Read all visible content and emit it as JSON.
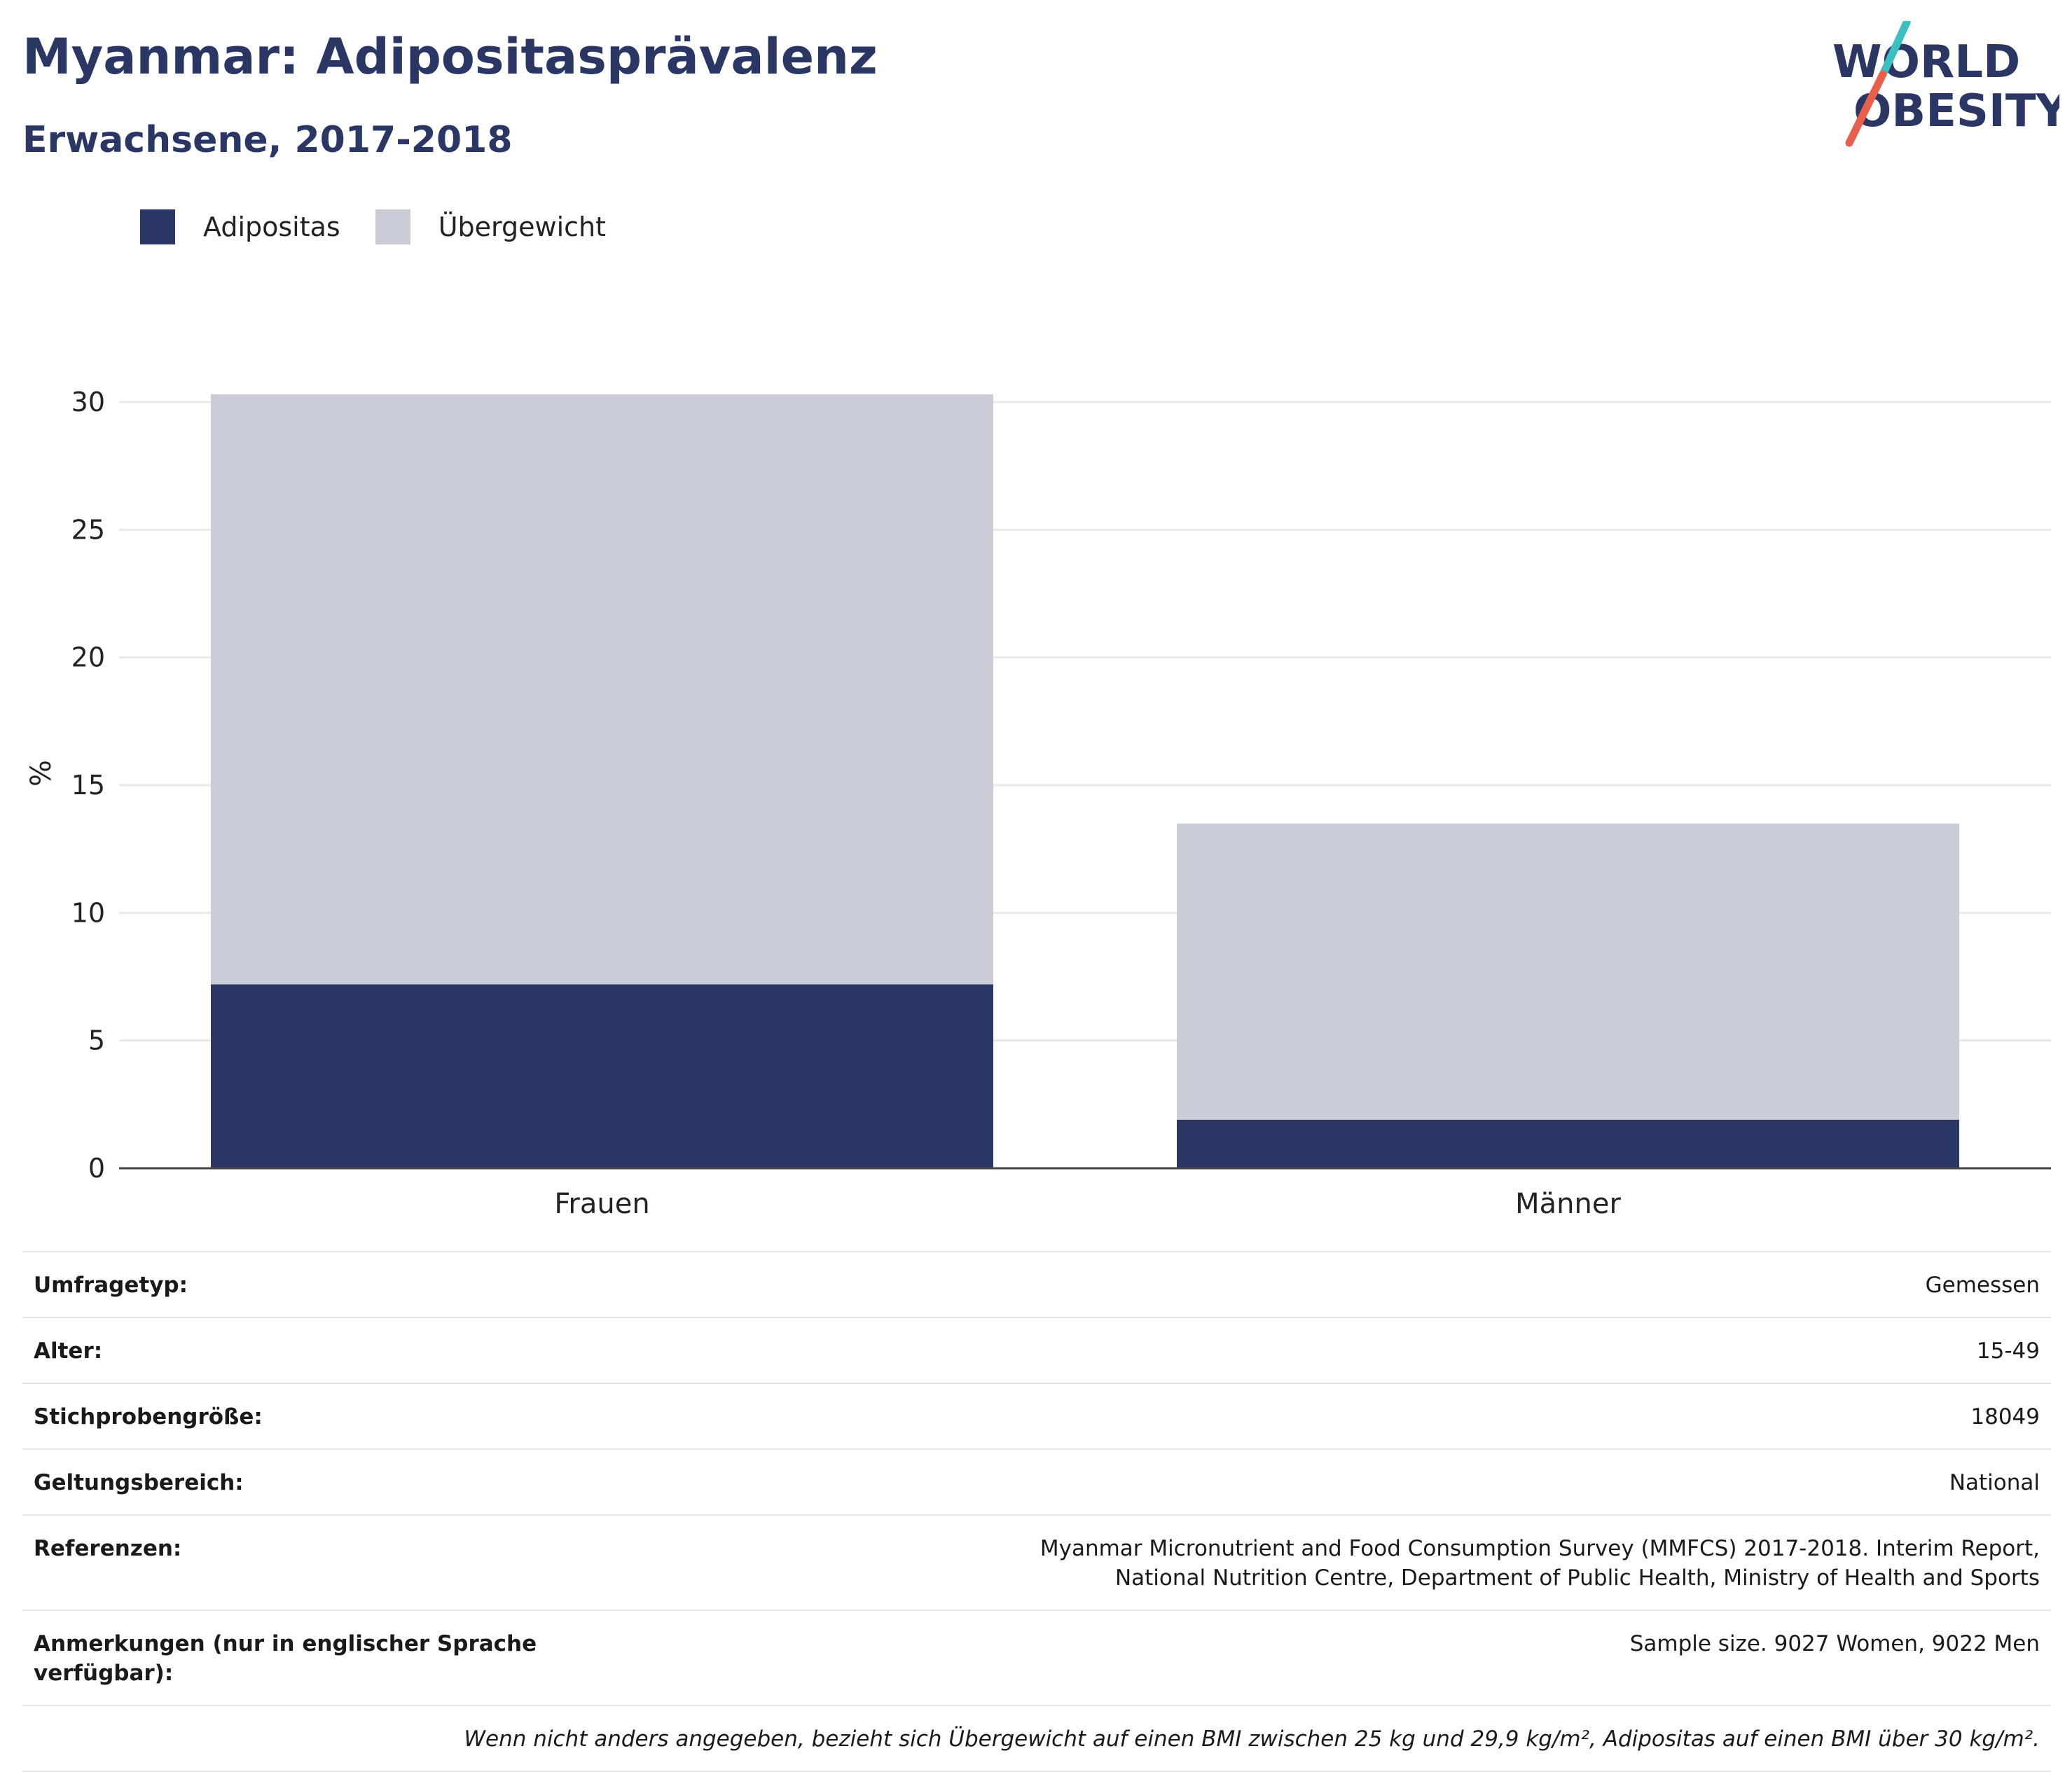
{
  "header": {
    "title": "Myanmar: Adipositasprävalenz",
    "subtitle": "Erwachsene, 2017-2018"
  },
  "logo": {
    "line1": "WORLD",
    "line2": "OBESITY",
    "colors": {
      "text": "#2a3764",
      "slash_top": "#3bbfc0",
      "slash_bottom": "#e8604c"
    }
  },
  "legend": [
    {
      "label": "Adipositas",
      "color": "#2b3764"
    },
    {
      "label": "Übergewicht",
      "color": "#cacdd8"
    }
  ],
  "chart_data": {
    "type": "bar",
    "stacked": true,
    "categories": [
      "Frauen",
      "Männer"
    ],
    "series": [
      {
        "name": "Adipositas",
        "values": [
          7.2,
          1.9
        ],
        "color": "#2b3764"
      },
      {
        "name": "Übergewicht",
        "values": [
          23.1,
          11.6
        ],
        "color": "#cacdd8"
      }
    ],
    "ylabel": "%",
    "ylim": [
      0,
      30
    ],
    "yticks": [
      0,
      5,
      10,
      15,
      20,
      25,
      30
    ],
    "grid": true,
    "legend_position": "top-left"
  },
  "info": {
    "rows": [
      {
        "key": "Umfragetyp:",
        "value": "Gemessen"
      },
      {
        "key": "Alter:",
        "value": "15-49"
      },
      {
        "key": "Stichprobengröße:",
        "value": "18049"
      },
      {
        "key": "Geltungsbereich:",
        "value": "National"
      },
      {
        "key": "Referenzen:",
        "value": "Myanmar Micronutrient and Food Consumption Survey (MMFCS) 2017-2018. Interim Report, National Nutrition Centre, Department of Public Health, Ministry of Health and Sports"
      },
      {
        "key": "Anmerkungen (nur in englischer Sprache verfügbar):",
        "value": "Sample size. 9027 Women, 9022 Men"
      }
    ],
    "note": "Wenn nicht anders angegeben, bezieht sich Übergewicht auf einen BMI zwischen 25 kg und 29,9 kg/m², Adipositas auf einen BMI über 30 kg/m²."
  }
}
